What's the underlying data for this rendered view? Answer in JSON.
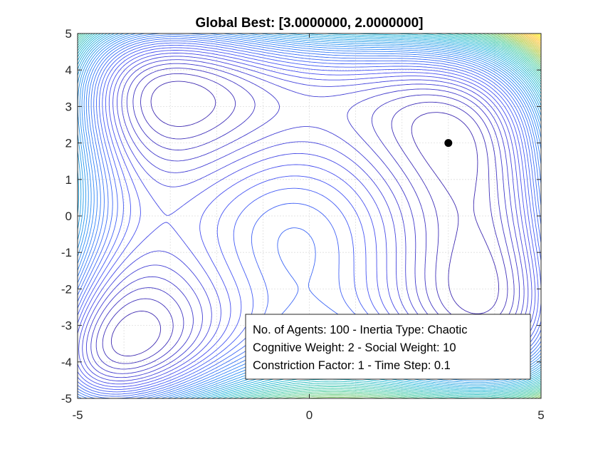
{
  "chart_data": {
    "type": "contour",
    "title": "Global Best: [3.0000000, 2.0000000]",
    "xlabel": "",
    "ylabel": "",
    "xlim": [
      -5,
      5
    ],
    "ylim": [
      -5,
      5
    ],
    "x_ticks": [
      "-5",
      "0",
      "5"
    ],
    "y_ticks": [
      "5",
      "4",
      "3",
      "2",
      "1",
      "0",
      "-1",
      "-2",
      "-3",
      "-4",
      "-5"
    ],
    "grid": true,
    "function": "Himmelblau",
    "colormap": "parula",
    "global_best": {
      "x": 3,
      "y": 2
    },
    "global_best_color": "#000000",
    "info_box": [
      "No. of Agents: 100 - Inertia Type: Chaotic",
      "Cognitive Weight: 2 - Social Weight: 10",
      "Constriction Factor: 1 - Time Step: 0.1"
    ],
    "info_box_placement": "bottom-right"
  }
}
